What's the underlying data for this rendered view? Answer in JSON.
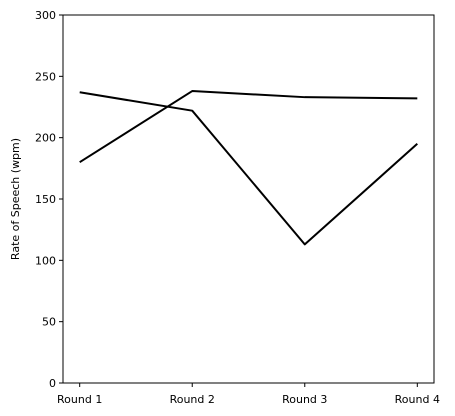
{
  "chart_data": {
    "type": "line",
    "title": "",
    "xlabel": "",
    "ylabel": "Rate of Speech (wpm)",
    "categories": [
      "Round 1",
      "Round 2",
      "Round 3",
      "Round 4"
    ],
    "ylim": [
      0,
      300
    ],
    "yticks": [
      "0",
      "50",
      "100",
      "150",
      "200",
      "250",
      "300"
    ],
    "grid": false,
    "line_color": "#000000",
    "series": [
      {
        "values": [
          237,
          222,
          113,
          195
        ]
      },
      {
        "values": [
          180,
          238,
          233,
          232
        ]
      }
    ]
  }
}
